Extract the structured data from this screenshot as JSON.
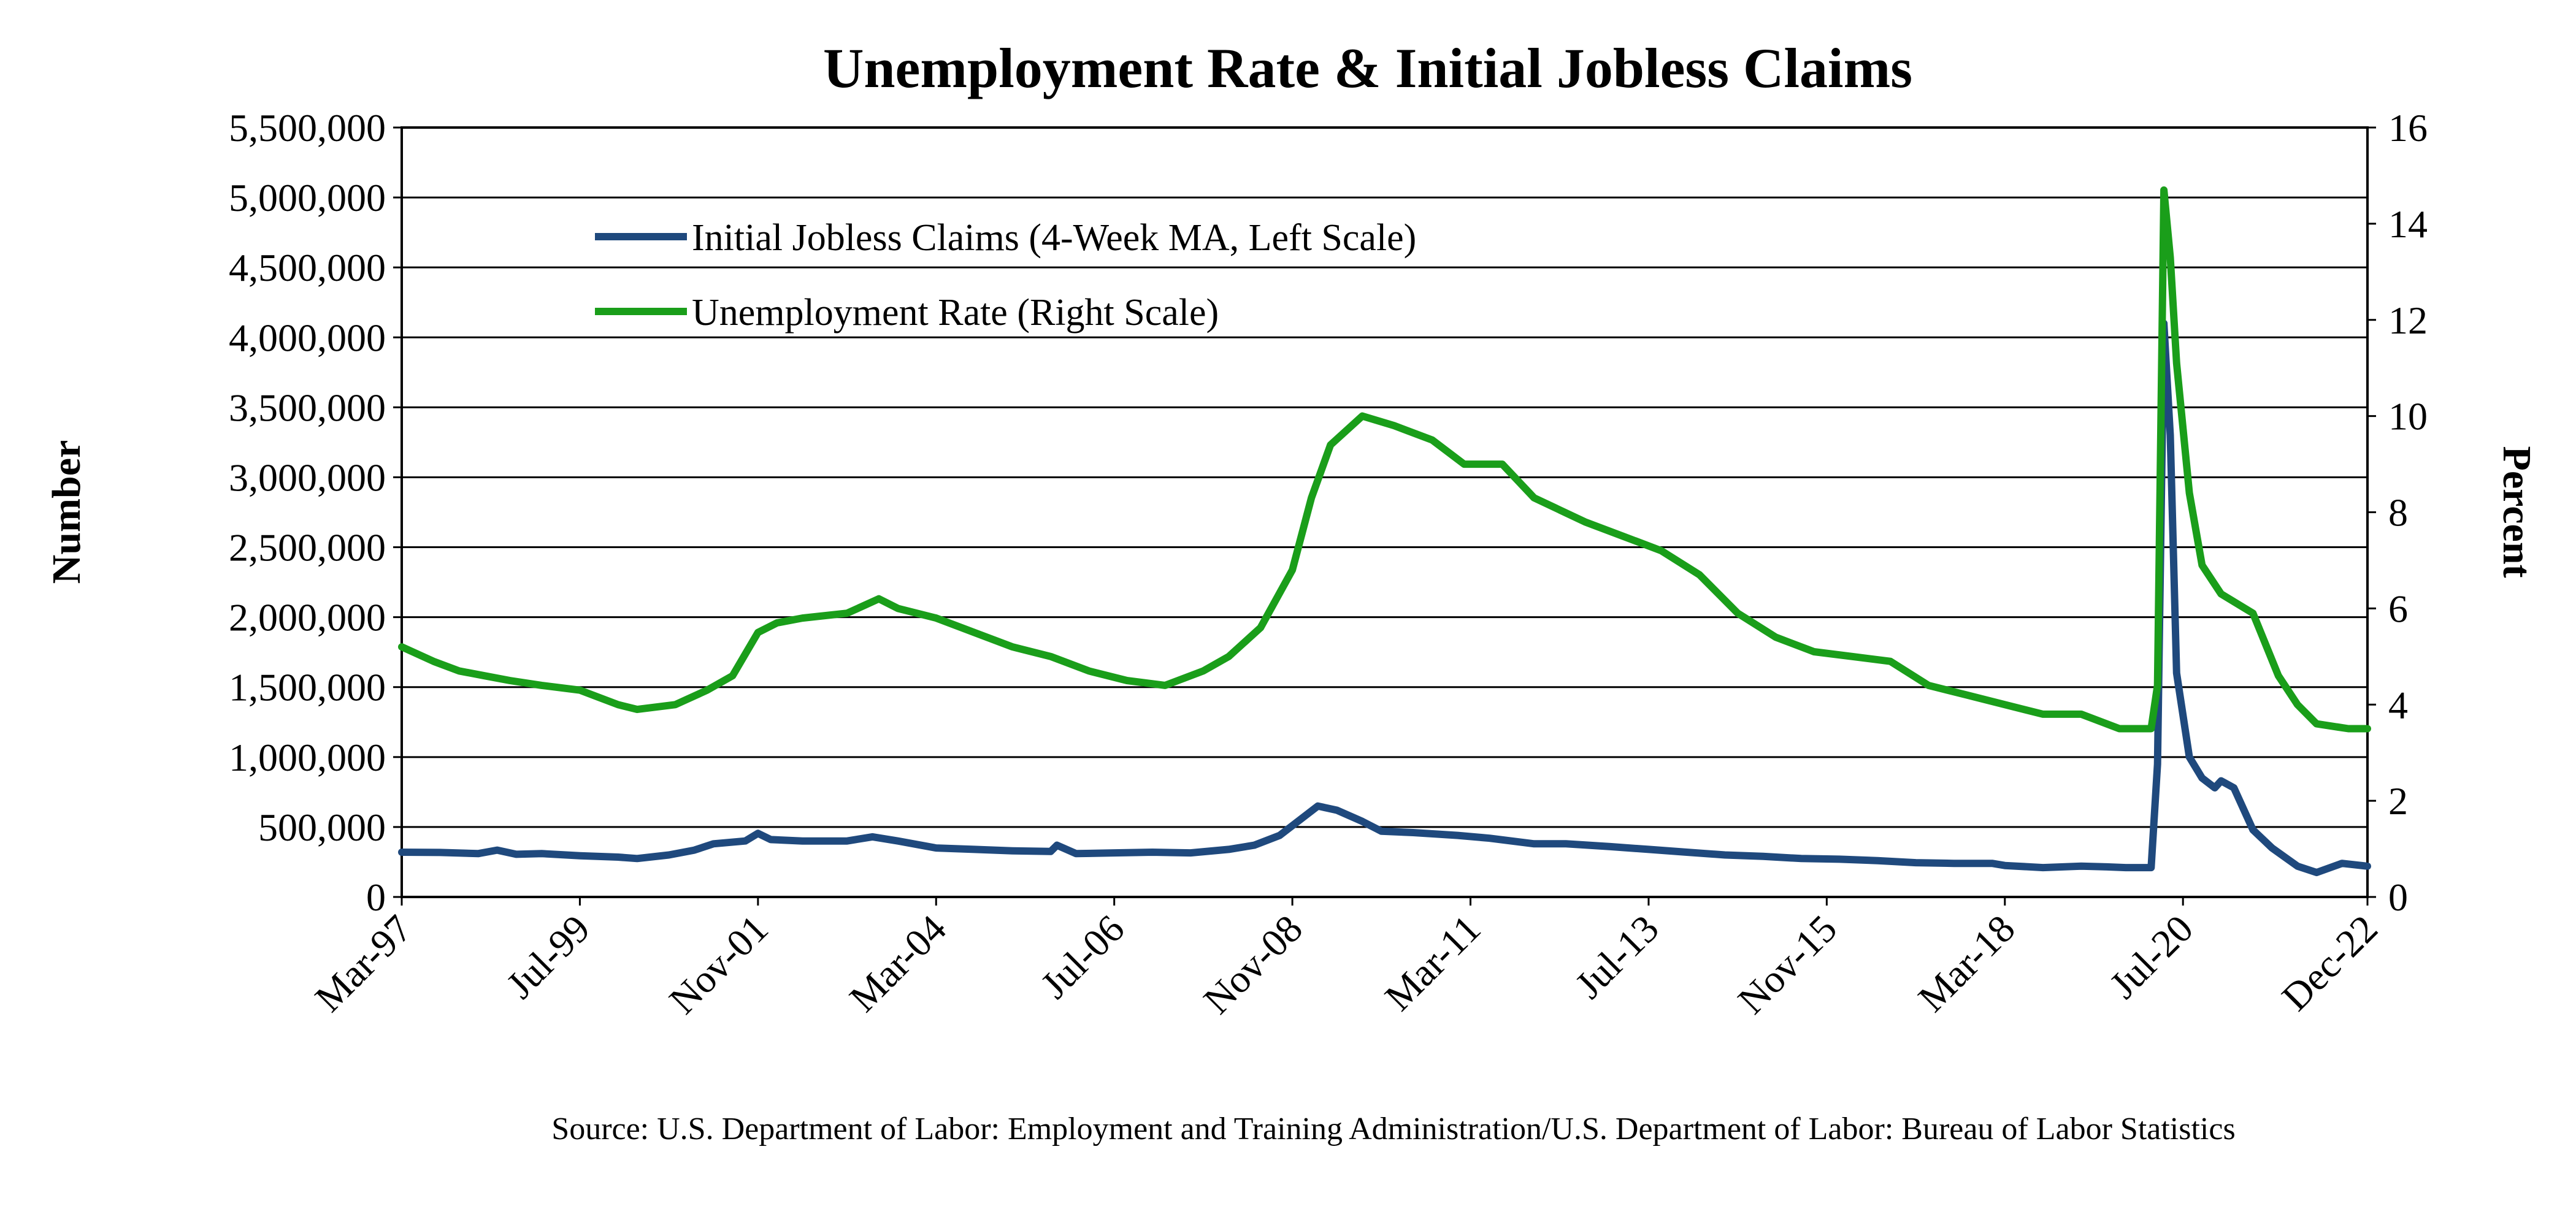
{
  "chart_data": {
    "type": "line",
    "title": "Unemployment Rate & Initial Jobless Claims",
    "source": "Source: U.S. Department of Labor: Employment and Training Administration/U.S. Department of Labor: Bureau of Labor Statistics",
    "ylabel_left": "Number",
    "ylabel_right": "Percent",
    "ylim_left": [
      0,
      5500000
    ],
    "ylim_right": [
      0,
      16
    ],
    "xlim": [
      "1997-03",
      "2022-12"
    ],
    "grid": true,
    "legend_position": "top-left inside plot",
    "left_ticks": [
      {
        "value": 0,
        "label": "0"
      },
      {
        "value": 500000,
        "label": "500,000"
      },
      {
        "value": 1000000,
        "label": "1,000,000"
      },
      {
        "value": 1500000,
        "label": "1,500,000"
      },
      {
        "value": 2000000,
        "label": "2,000,000"
      },
      {
        "value": 2500000,
        "label": "2,500,000"
      },
      {
        "value": 3000000,
        "label": "3,000,000"
      },
      {
        "value": 3500000,
        "label": "3,500,000"
      },
      {
        "value": 4000000,
        "label": "4,000,000"
      },
      {
        "value": 4500000,
        "label": "4,500,000"
      },
      {
        "value": 5000000,
        "label": "5,000,000"
      },
      {
        "value": 5500000,
        "label": "5,500,000"
      }
    ],
    "right_ticks": [
      {
        "value": 0,
        "label": "0"
      },
      {
        "value": 2,
        "label": "2"
      },
      {
        "value": 4,
        "label": "4"
      },
      {
        "value": 6,
        "label": "6"
      },
      {
        "value": 8,
        "label": "8"
      },
      {
        "value": 10,
        "label": "10"
      },
      {
        "value": 12,
        "label": "12"
      },
      {
        "value": 14,
        "label": "14"
      },
      {
        "value": 16,
        "label": "16"
      }
    ],
    "x_ticks": [
      {
        "value": "1997-03",
        "label": "Mar-97"
      },
      {
        "value": "1999-07",
        "label": "Jul-99"
      },
      {
        "value": "2001-11",
        "label": "Nov-01"
      },
      {
        "value": "2004-03",
        "label": "Mar-04"
      },
      {
        "value": "2006-07",
        "label": "Jul-06"
      },
      {
        "value": "2008-11",
        "label": "Nov-08"
      },
      {
        "value": "2011-03",
        "label": "Mar-11"
      },
      {
        "value": "2013-07",
        "label": "Jul-13"
      },
      {
        "value": "2015-11",
        "label": "Nov-15"
      },
      {
        "value": "2018-03",
        "label": "Mar-18"
      },
      {
        "value": "2020-07",
        "label": "Jul-20"
      },
      {
        "value": "2022-12",
        "label": "Dec-22"
      }
    ],
    "series": [
      {
        "name": "Initial Jobless Claims (4-Week MA, Left Scale)",
        "axis": "left",
        "color": "#1f497d",
        "points": [
          [
            "1997-03",
            320000
          ],
          [
            "1997-09",
            318000
          ],
          [
            "1998-03",
            310000
          ],
          [
            "1998-06",
            335000
          ],
          [
            "1998-09",
            305000
          ],
          [
            "1999-01",
            310000
          ],
          [
            "1999-07",
            295000
          ],
          [
            "2000-01",
            285000
          ],
          [
            "2000-04",
            275000
          ],
          [
            "2000-09",
            300000
          ],
          [
            "2001-01",
            335000
          ],
          [
            "2001-04",
            380000
          ],
          [
            "2001-09",
            400000
          ],
          [
            "2001-11",
            455000
          ],
          [
            "2002-01",
            410000
          ],
          [
            "2002-06",
            400000
          ],
          [
            "2003-01",
            400000
          ],
          [
            "2003-05",
            430000
          ],
          [
            "2003-09",
            400000
          ],
          [
            "2004-03",
            350000
          ],
          [
            "2004-09",
            340000
          ],
          [
            "2005-03",
            330000
          ],
          [
            "2005-09",
            325000
          ],
          [
            "2005-10",
            370000
          ],
          [
            "2006-01",
            310000
          ],
          [
            "2006-07",
            315000
          ],
          [
            "2007-01",
            320000
          ],
          [
            "2007-07",
            315000
          ],
          [
            "2008-01",
            340000
          ],
          [
            "2008-05",
            370000
          ],
          [
            "2008-09",
            440000
          ],
          [
            "2009-01",
            580000
          ],
          [
            "2009-03",
            650000
          ],
          [
            "2009-06",
            620000
          ],
          [
            "2009-10",
            540000
          ],
          [
            "2010-01",
            470000
          ],
          [
            "2010-06",
            460000
          ],
          [
            "2011-01",
            440000
          ],
          [
            "2011-06",
            420000
          ],
          [
            "2012-01",
            380000
          ],
          [
            "2012-06",
            380000
          ],
          [
            "2013-01",
            360000
          ],
          [
            "2013-07",
            340000
          ],
          [
            "2014-01",
            320000
          ],
          [
            "2014-07",
            300000
          ],
          [
            "2015-01",
            290000
          ],
          [
            "2015-07",
            275000
          ],
          [
            "2016-01",
            270000
          ],
          [
            "2016-07",
            260000
          ],
          [
            "2017-01",
            245000
          ],
          [
            "2017-07",
            240000
          ],
          [
            "2018-01",
            240000
          ],
          [
            "2018-03",
            225000
          ],
          [
            "2018-09",
            210000
          ],
          [
            "2019-03",
            220000
          ],
          [
            "2019-07",
            215000
          ],
          [
            "2019-10",
            210000
          ],
          [
            "2020-02",
            210000
          ],
          [
            "2020-03",
            950000
          ],
          [
            "2020-04",
            4100000
          ],
          [
            "2020-05",
            3300000
          ],
          [
            "2020-06",
            1600000
          ],
          [
            "2020-08",
            1000000
          ],
          [
            "2020-10",
            850000
          ],
          [
            "2020-12",
            780000
          ],
          [
            "2021-01",
            830000
          ],
          [
            "2021-03",
            780000
          ],
          [
            "2021-06",
            480000
          ],
          [
            "2021-09",
            350000
          ],
          [
            "2022-01",
            220000
          ],
          [
            "2022-04",
            175000
          ],
          [
            "2022-08",
            240000
          ],
          [
            "2022-12",
            220000
          ]
        ]
      },
      {
        "name": "Unemployment Rate (Right Scale)",
        "axis": "right",
        "color": "#1a9e1a",
        "points": [
          [
            "1997-03",
            5.2
          ],
          [
            "1997-08",
            4.9
          ],
          [
            "1997-12",
            4.7
          ],
          [
            "1998-04",
            4.6
          ],
          [
            "1998-08",
            4.5
          ],
          [
            "1999-01",
            4.4
          ],
          [
            "1999-07",
            4.3
          ],
          [
            "2000-01",
            4.0
          ],
          [
            "2000-04",
            3.9
          ],
          [
            "2000-10",
            4.0
          ],
          [
            "2001-03",
            4.3
          ],
          [
            "2001-07",
            4.6
          ],
          [
            "2001-11",
            5.5
          ],
          [
            "2002-02",
            5.7
          ],
          [
            "2002-06",
            5.8
          ],
          [
            "2003-01",
            5.9
          ],
          [
            "2003-06",
            6.2
          ],
          [
            "2003-09",
            6.0
          ],
          [
            "2004-03",
            5.8
          ],
          [
            "2004-09",
            5.5
          ],
          [
            "2005-03",
            5.2
          ],
          [
            "2005-09",
            5.0
          ],
          [
            "2006-03",
            4.7
          ],
          [
            "2006-09",
            4.5
          ],
          [
            "2007-03",
            4.4
          ],
          [
            "2007-09",
            4.7
          ],
          [
            "2008-01",
            5.0
          ],
          [
            "2008-06",
            5.6
          ],
          [
            "2008-11",
            6.8
          ],
          [
            "2009-02",
            8.3
          ],
          [
            "2009-05",
            9.4
          ],
          [
            "2009-10",
            10.0
          ],
          [
            "2010-03",
            9.8
          ],
          [
            "2010-09",
            9.5
          ],
          [
            "2011-02",
            9.0
          ],
          [
            "2011-08",
            9.0
          ],
          [
            "2012-01",
            8.3
          ],
          [
            "2012-09",
            7.8
          ],
          [
            "2013-03",
            7.5
          ],
          [
            "2013-09",
            7.2
          ],
          [
            "2014-03",
            6.7
          ],
          [
            "2014-09",
            5.9
          ],
          [
            "2015-03",
            5.4
          ],
          [
            "2015-09",
            5.1
          ],
          [
            "2016-03",
            5.0
          ],
          [
            "2016-09",
            4.9
          ],
          [
            "2017-03",
            4.4
          ],
          [
            "2017-09",
            4.2
          ],
          [
            "2018-03",
            4.0
          ],
          [
            "2018-09",
            3.8
          ],
          [
            "2019-03",
            3.8
          ],
          [
            "2019-09",
            3.5
          ],
          [
            "2020-02",
            3.5
          ],
          [
            "2020-03",
            4.4
          ],
          [
            "2020-04",
            14.7
          ],
          [
            "2020-05",
            13.3
          ],
          [
            "2020-06",
            11.1
          ],
          [
            "2020-08",
            8.4
          ],
          [
            "2020-10",
            6.9
          ],
          [
            "2021-01",
            6.3
          ],
          [
            "2021-06",
            5.9
          ],
          [
            "2021-10",
            4.6
          ],
          [
            "2022-01",
            4.0
          ],
          [
            "2022-04",
            3.6
          ],
          [
            "2022-09",
            3.5
          ],
          [
            "2022-12",
            3.5
          ]
        ]
      }
    ]
  }
}
